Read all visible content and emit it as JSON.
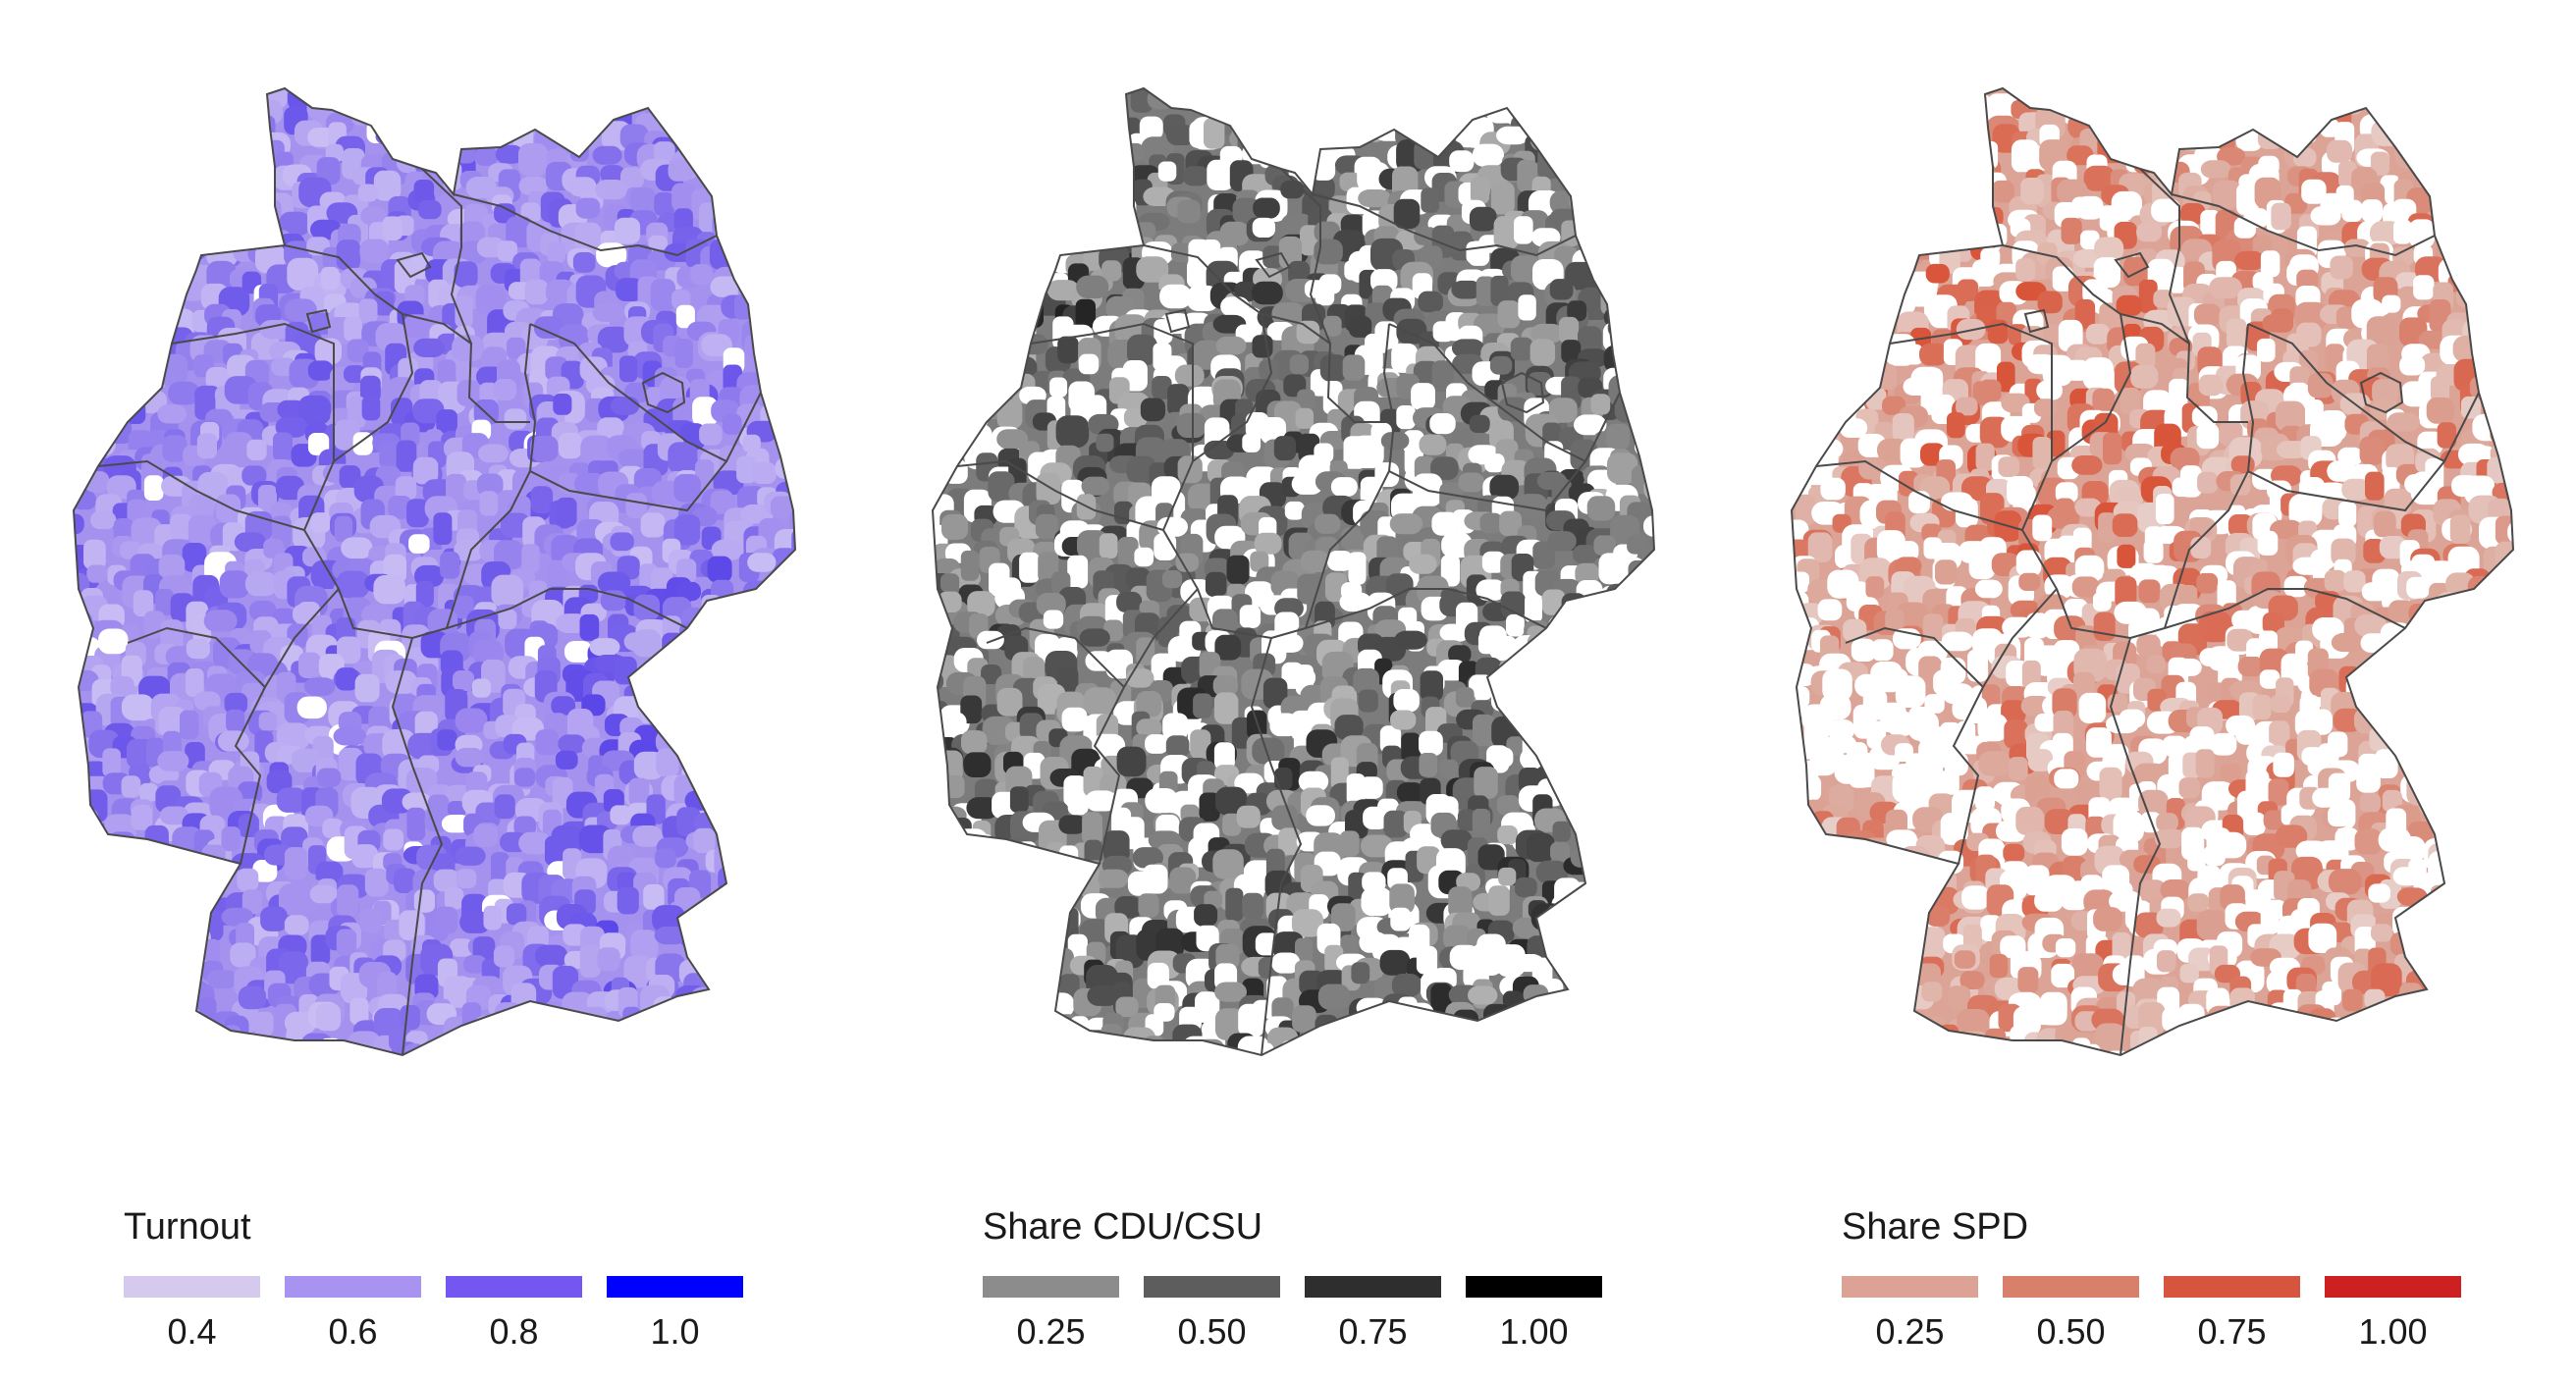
{
  "maps": [
    {
      "id": "turnout",
      "legend_title": "Turnout",
      "base_color": "#a592ef",
      "dark_color": "#5a45e8",
      "light_color": "#c9bdf4",
      "gap_density": 0.02,
      "legend": [
        {
          "label": "0.4",
          "color": "#d5c9ee"
        },
        {
          "label": "0.6",
          "color": "#a993f0"
        },
        {
          "label": "0.8",
          "color": "#7456f0"
        },
        {
          "label": "1.0",
          "color": "#0000ff"
        }
      ]
    },
    {
      "id": "cdu",
      "legend_title": "Share CDU/CSU",
      "base_color": "#7c7c7c",
      "dark_color": "#222222",
      "light_color": "#b3b3b3",
      "gap_density": 0.28,
      "legend": [
        {
          "label": "0.25",
          "color": "#8c8c8c"
        },
        {
          "label": "0.50",
          "color": "#5d5d5d"
        },
        {
          "label": "0.75",
          "color": "#2e2e2e"
        },
        {
          "label": "1.00",
          "color": "#000000"
        }
      ]
    },
    {
      "id": "spd",
      "legend_title": "Share SPD",
      "base_color": "#dba496",
      "dark_color": "#d9553a",
      "light_color": "#e8cfca",
      "gap_density": 0.38,
      "legend": [
        {
          "label": "0.25",
          "color": "#dba295"
        },
        {
          "label": "0.50",
          "color": "#d9806a"
        },
        {
          "label": "0.75",
          "color": "#d7553e"
        },
        {
          "label": "1.00",
          "color": "#cd2020"
        }
      ]
    }
  ]
}
